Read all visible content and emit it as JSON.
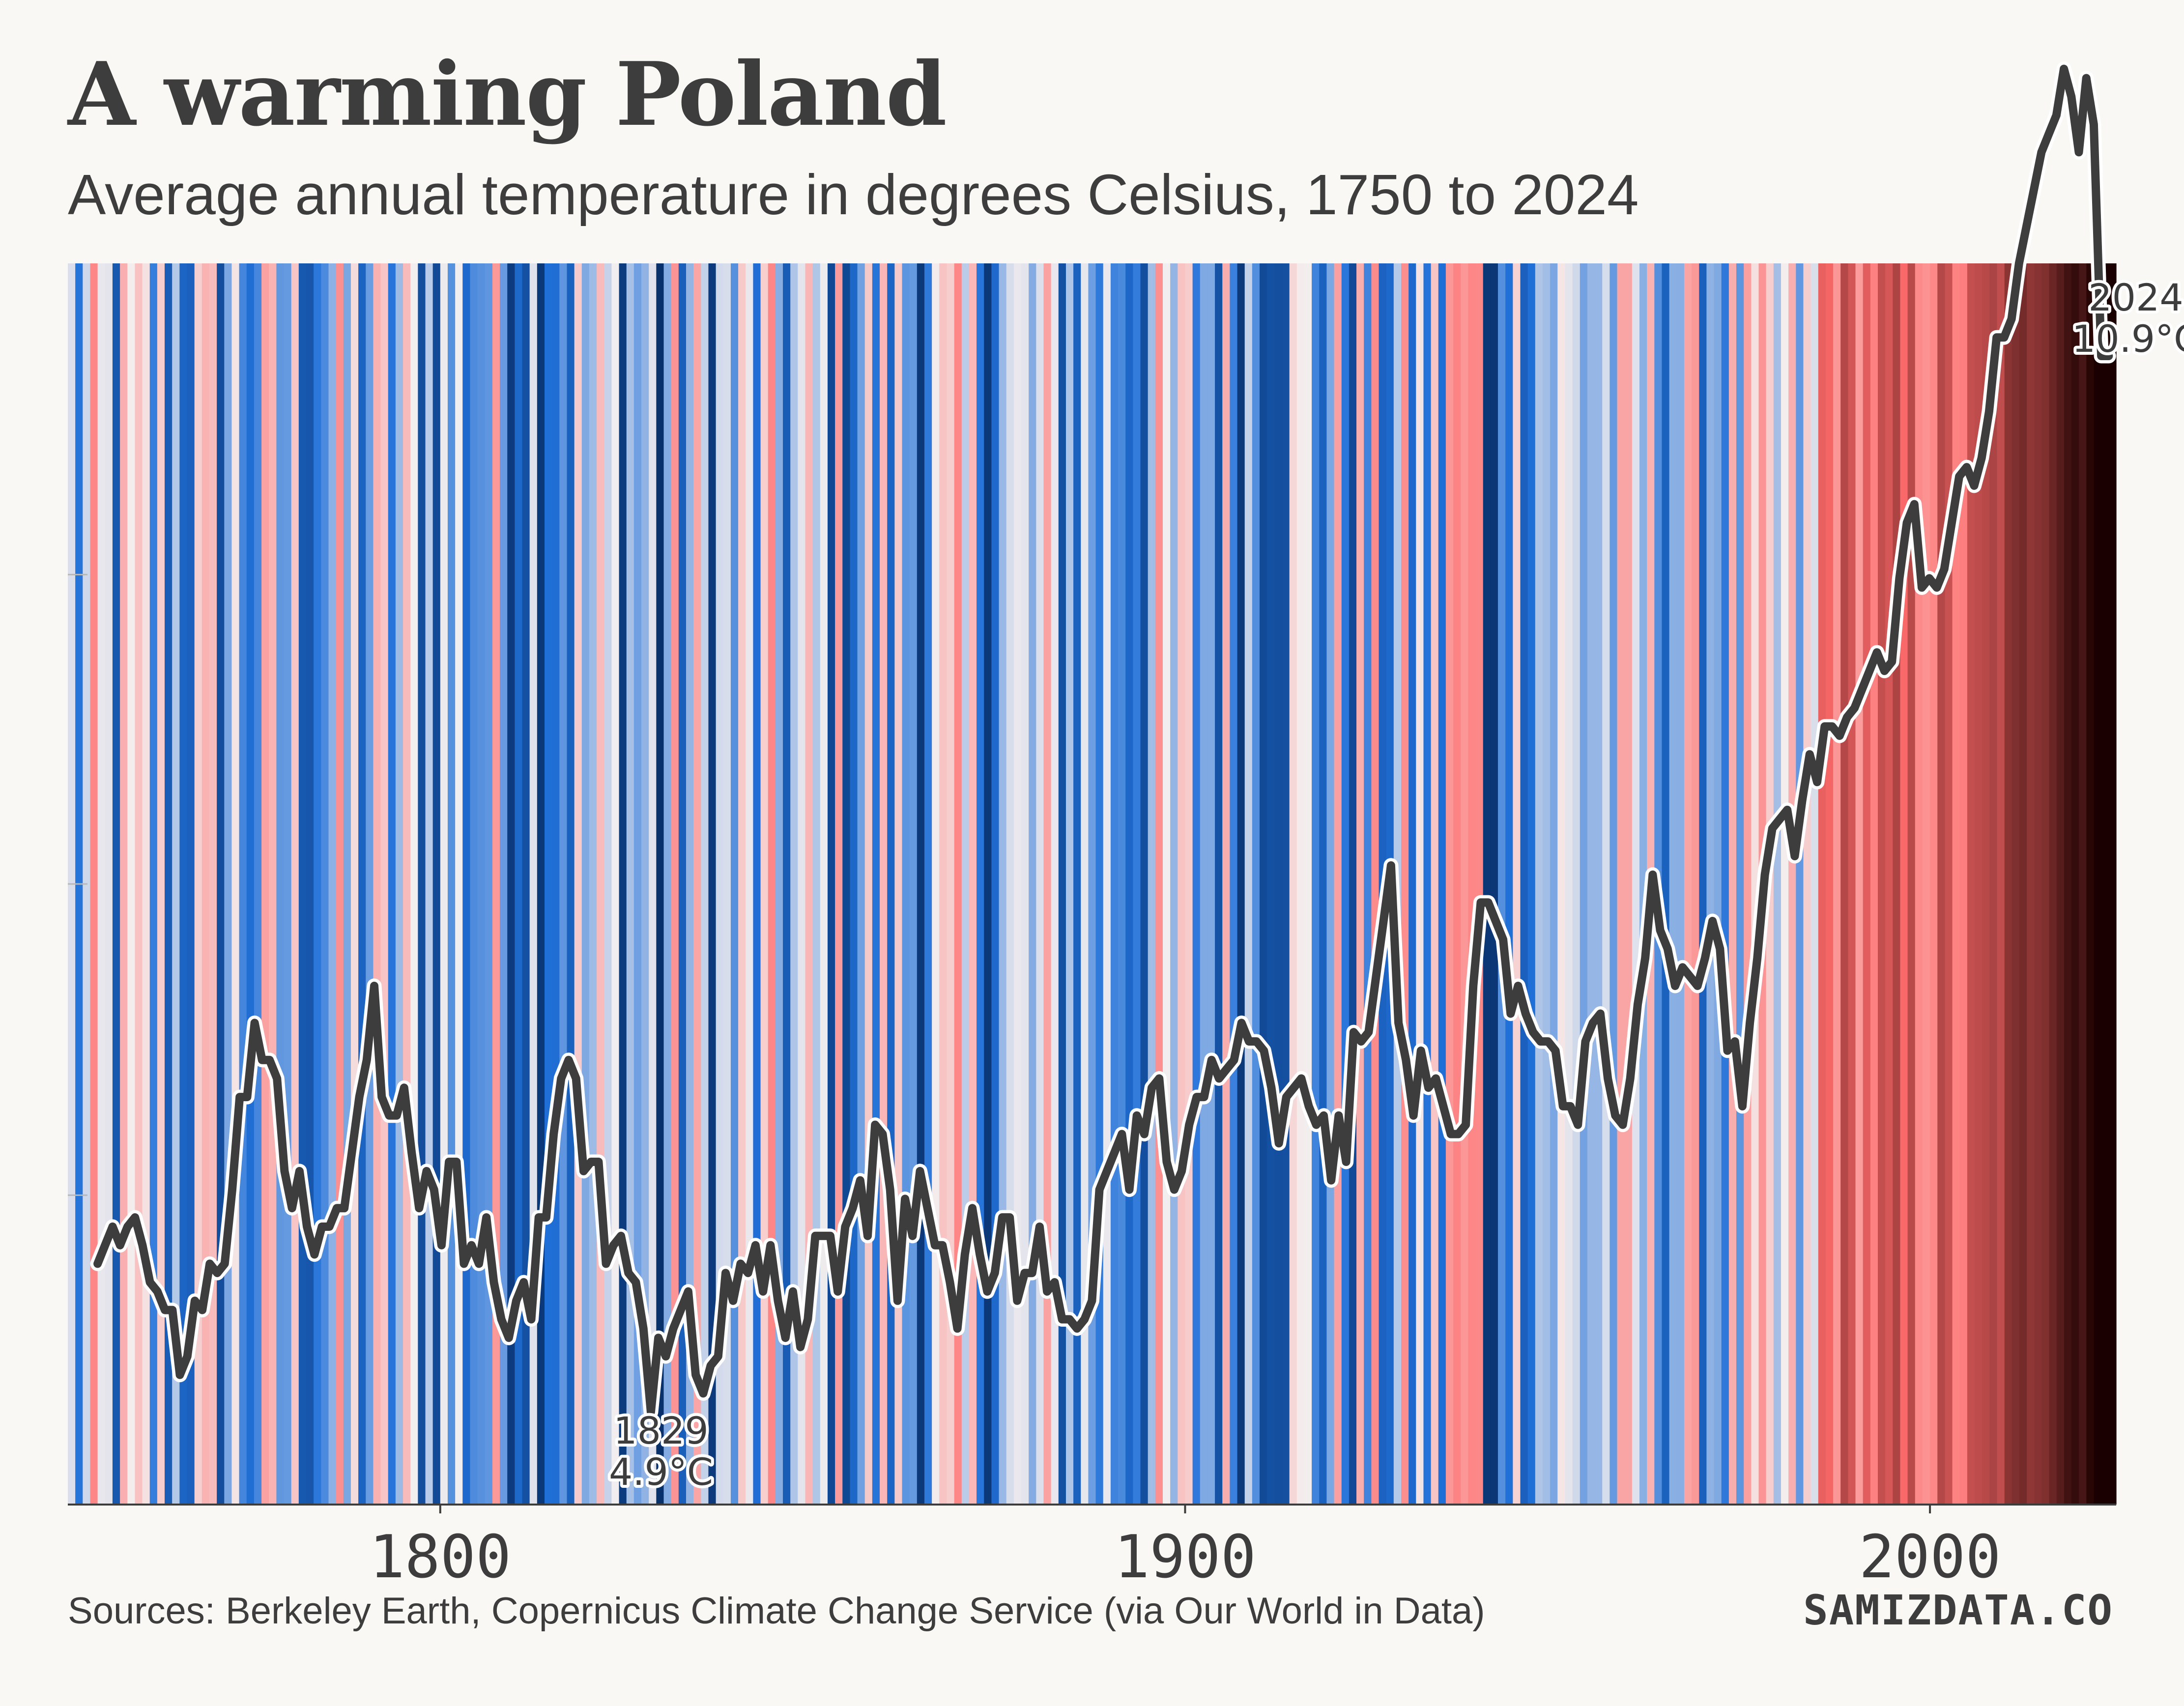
{
  "title": "A warming Poland",
  "subtitle": "Average annual temperature in degrees Celsius, 1750 to 2024",
  "source": "Sources: Berkeley Earth, Copernicus Climate Change Service (via Our World in Data)",
  "brand": "SAMIZDATA.CO",
  "chart_data": {
    "type": "line",
    "background": "warming-stripes",
    "x_start": 1754,
    "x_end": 2024,
    "xlim": [
      1750,
      2025
    ],
    "ylim": [
      4.7,
      11.4
    ],
    "xticks": [
      1800,
      1900,
      2000
    ],
    "xtick_labels": [
      "1800",
      "1900",
      "2000"
    ],
    "y_gridlines": [
      6.37,
      8.05,
      9.72
    ],
    "grid": false,
    "stripe_colors": {
      "coldest": "#08306b",
      "cold": "#2171d9",
      "neutral": "#f4eeee",
      "warm": "#ff6b6b",
      "warmest": "#1a0000"
    },
    "line_color": "#3d3d3d",
    "values": [
      6.0,
      6.1,
      6.2,
      6.1,
      6.2,
      6.25,
      6.1,
      5.9,
      5.85,
      5.75,
      5.75,
      5.4,
      5.5,
      5.8,
      5.75,
      6.0,
      5.95,
      6.0,
      6.4,
      6.9,
      6.9,
      7.3,
      7.1,
      7.1,
      7.0,
      6.5,
      6.3,
      6.5,
      6.2,
      6.05,
      6.2,
      6.2,
      6.3,
      6.3,
      6.6,
      6.9,
      7.1,
      7.5,
      6.9,
      6.8,
      6.8,
      6.95,
      6.6,
      6.3,
      6.5,
      6.4,
      6.1,
      6.55,
      6.55,
      6.0,
      6.1,
      6.0,
      6.25,
      5.9,
      5.7,
      5.6,
      5.8,
      5.9,
      5.7,
      6.25,
      6.25,
      6.7,
      7.0,
      7.1,
      7.0,
      6.5,
      6.55,
      6.55,
      6.0,
      6.1,
      6.15,
      5.95,
      5.9,
      5.65,
      5.2,
      5.6,
      5.5,
      5.65,
      5.75,
      5.85,
      5.4,
      5.3,
      5.45,
      5.5,
      5.95,
      5.8,
      6.0,
      5.95,
      6.1,
      5.85,
      6.1,
      5.8,
      5.6,
      5.85,
      5.55,
      5.7,
      6.15,
      6.15,
      6.15,
      5.85,
      6.2,
      6.3,
      6.45,
      6.15,
      6.75,
      6.7,
      6.4,
      5.8,
      6.35,
      6.15,
      6.5,
      6.3,
      6.1,
      6.1,
      5.9,
      5.65,
      6.05,
      6.3,
      6.05,
      5.85,
      5.95,
      6.25,
      6.25,
      5.8,
      5.95,
      5.95,
      6.2,
      5.85,
      5.9,
      5.7,
      5.7,
      5.65,
      5.7,
      5.8,
      6.4,
      6.5,
      6.6,
      6.7,
      6.4,
      6.8,
      6.7,
      6.95,
      7.0,
      6.55,
      6.4,
      6.5,
      6.75,
      6.9,
      6.9,
      7.1,
      7.0,
      7.05,
      7.1,
      7.3,
      7.2,
      7.2,
      7.15,
      6.95,
      6.65,
      6.9,
      6.95,
      7.0,
      6.85,
      6.75,
      6.8,
      6.45,
      6.8,
      6.55,
      7.25,
      7.2,
      7.25,
      7.55,
      7.85,
      8.15,
      7.3,
      7.1,
      6.8,
      7.15,
      6.95,
      7.0,
      6.85,
      6.7,
      6.7,
      6.75,
      7.5,
      7.95,
      7.95,
      7.85,
      7.75,
      7.35,
      7.5,
      7.35,
      7.25,
      7.2,
      7.2,
      7.15,
      6.85,
      6.85,
      6.75,
      7.2,
      7.3,
      7.35,
      7.0,
      6.8,
      6.75,
      7.0,
      7.4,
      7.65,
      8.1,
      7.8,
      7.7,
      7.5,
      7.6,
      7.55,
      7.5,
      7.65,
      7.85,
      7.7,
      7.15,
      7.2,
      6.85,
      7.3,
      7.65,
      8.1,
      8.35,
      8.4,
      8.45,
      8.2,
      8.5,
      8.75,
      8.6,
      8.9,
      8.9,
      8.85,
      8.95,
      9.0,
      9.1,
      9.2,
      9.3,
      9.2,
      9.25,
      9.7,
      10.0,
      10.1,
      9.65,
      9.7,
      9.65,
      9.75,
      10.0,
      10.25,
      10.3,
      10.2,
      10.35,
      10.6,
      11.0,
      11.0,
      11.1,
      11.4,
      11.6,
      11.8,
      12.0,
      12.1,
      12.2,
      12.45,
      12.3,
      12.0,
      12.4,
      12.15,
      10.9,
      10.9
    ],
    "annotations": [
      {
        "year": "1829",
        "value": "4.9°C"
      },
      {
        "year": "2024",
        "value": "10.9°C"
      }
    ]
  }
}
